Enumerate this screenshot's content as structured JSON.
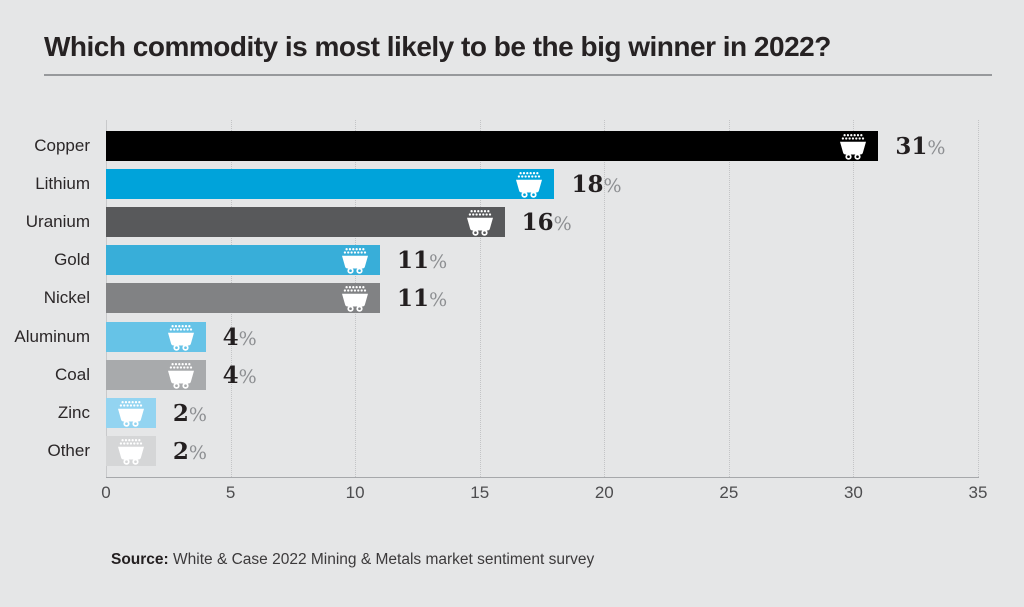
{
  "page": {
    "background": "#e5e6e7"
  },
  "header": {
    "title": "Which commodity is most likely to be the big winner in 2022?"
  },
  "chart_data": {
    "type": "bar",
    "orientation": "horizontal",
    "title": "Which commodity is most likely to be the big winner in 2022?",
    "categories": [
      "Copper",
      "Lithium",
      "Uranium",
      "Gold",
      "Nickel",
      "Aluminum",
      "Coal",
      "Zinc",
      "Other"
    ],
    "values": [
      31,
      18,
      16,
      11,
      11,
      4,
      4,
      2,
      2
    ],
    "value_labels": [
      "31%",
      "18%",
      "16%",
      "11%",
      "11%",
      "4%",
      "4%",
      "2%",
      "2%"
    ],
    "value_suffix": "%",
    "bar_colors": [
      "#000000",
      "#00a3da",
      "#58595b",
      "#38aed9",
      "#818284",
      "#66c3e7",
      "#a8aaac",
      "#93d4f1",
      "#d5d6d7"
    ],
    "bar_icon": "mine-cart-icon",
    "bar_icon_color": "#ffffff",
    "x_ticks": [
      0,
      5,
      10,
      15,
      20,
      25,
      30,
      35
    ],
    "xlim": [
      0,
      35
    ],
    "xlabel": "",
    "ylabel": "",
    "grid": "vertical-dotted",
    "legend": "none"
  },
  "footer": {
    "source_label": "Source:",
    "source_text": "White & Case 2022 Mining & Metals market sentiment survey"
  }
}
